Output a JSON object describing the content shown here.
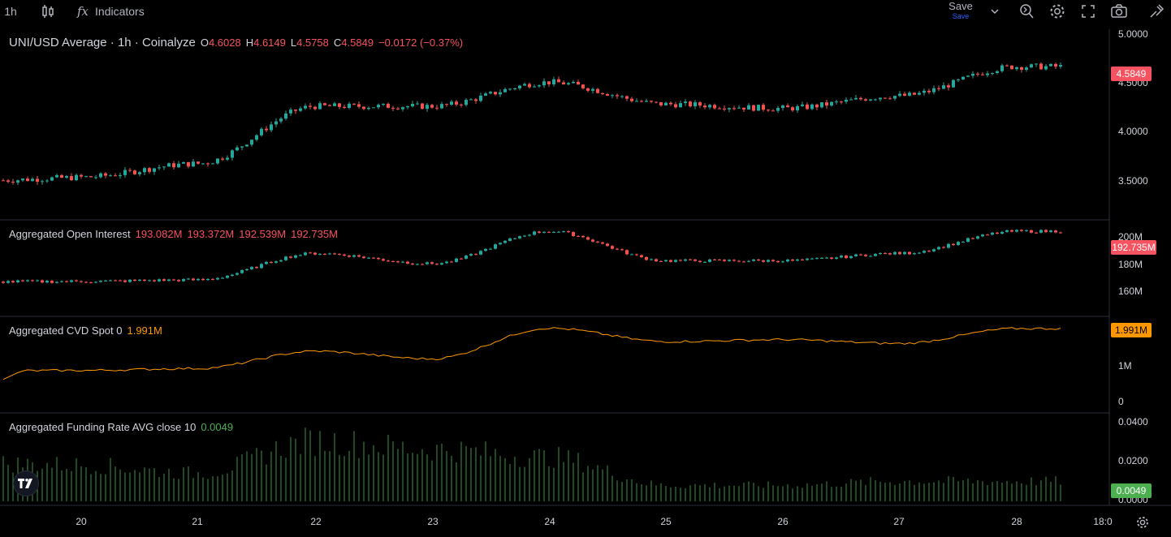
{
  "toolbar": {
    "interval": "1h",
    "indicators_label": "Indicators",
    "save_label": "Save",
    "save_sub": "Save"
  },
  "panes": {
    "price": {
      "title": "UNI/USD Average · 1h · Coinalyze",
      "o_label": "O",
      "o": "4.6028",
      "h_label": "H",
      "h": "4.6149",
      "l_label": "L",
      "l": "4.5758",
      "c_label": "C",
      "c": "4.5849",
      "change": "−0.0172 (−0.37%)",
      "axis": [
        "5.0000",
        "4.5000",
        "4.0000",
        "3.5000"
      ],
      "tag": "4.5849",
      "tag_color": "#f7525f"
    },
    "oi": {
      "title": "Aggregated Open Interest",
      "values": [
        "193.082M",
        "193.372M",
        "192.539M",
        "192.735M"
      ],
      "axis": [
        "200M",
        "180M",
        "160M"
      ],
      "tag": "192.735M",
      "tag_color": "#f7525f"
    },
    "cvd": {
      "title": "Aggregated CVD Spot 0",
      "value": "1.991M",
      "axis": [
        "1M",
        "0"
      ],
      "tag": "1.991M",
      "tag_color": "#ff9800"
    },
    "funding": {
      "title": "Aggregated Funding Rate AVG close 10",
      "value": "0.0049",
      "axis": [
        "0.0400",
        "0.0200",
        "0.0000"
      ],
      "tag": "0.0049",
      "tag_color": "#4caf50"
    }
  },
  "x_axis": [
    "20",
    "21",
    "22",
    "23",
    "24",
    "25",
    "26",
    "27",
    "28",
    "18:0"
  ],
  "colors": {
    "up": "#26a69a",
    "down": "#ef5350",
    "cvd": "#ff9800",
    "funding": "#4caf50"
  },
  "chart_data": [
    {
      "type": "line",
      "title": "UNI/USD Average · 1h · Coinalyze",
      "x": [
        "20",
        "21",
        "22",
        "23",
        "24",
        "25",
        "26",
        "27",
        "28"
      ],
      "series": [
        {
          "values": [
            3.62,
            3.75,
            4.3,
            4.3,
            4.53,
            4.32,
            4.28,
            4.4,
            4.68
          ]
        }
      ],
      "ylim": [
        3.25,
        5.0
      ]
    },
    {
      "type": "line",
      "title": "Aggregated Open Interest",
      "x": [
        "20",
        "21",
        "22",
        "23",
        "24",
        "25",
        "26",
        "27",
        "28"
      ],
      "series": [
        {
          "values": [
            166,
            167,
            185,
            178,
            200,
            180,
            180,
            185,
            200
          ]
        }
      ],
      "ylim": [
        145,
        205
      ]
    },
    {
      "type": "line",
      "title": "Aggregated CVD Spot 0",
      "x": [
        "20",
        "21",
        "22",
        "23",
        "24",
        "25",
        "26",
        "27",
        "28"
      ],
      "series": [
        {
          "values": [
            0.9,
            0.95,
            1.4,
            1.2,
            2.0,
            1.65,
            1.7,
            1.6,
            1.99
          ]
        }
      ],
      "ylim": [
        -0.1,
        2.2
      ]
    },
    {
      "type": "bar",
      "title": "Aggregated Funding Rate AVG close 10",
      "x": [
        "20",
        "21",
        "22",
        "23",
        "24",
        "25",
        "26",
        "27",
        "28"
      ],
      "series": [
        {
          "values": [
            0.018,
            0.014,
            0.03,
            0.026,
            0.022,
            0.008,
            0.008,
            0.01,
            0.01
          ]
        }
      ],
      "ylim": [
        0,
        0.042
      ]
    }
  ]
}
